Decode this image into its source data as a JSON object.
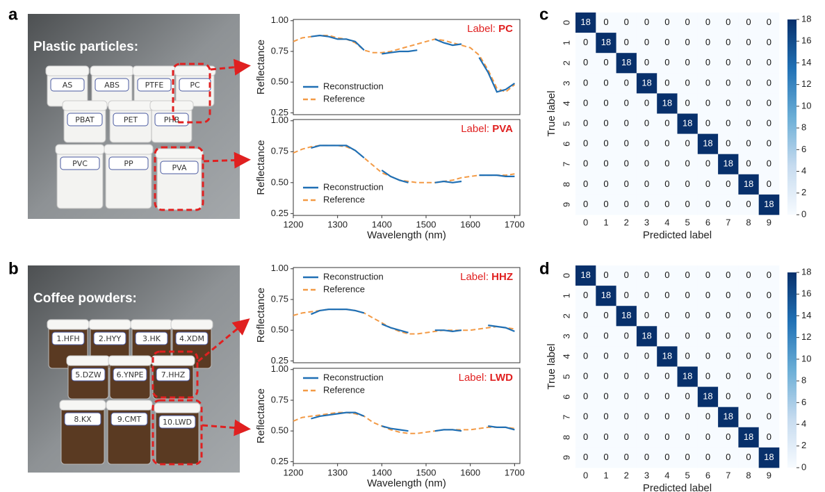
{
  "panels": [
    "a",
    "b",
    "c",
    "d"
  ],
  "photos": [
    {
      "title": "Plastic particles:",
      "jars": [
        "AS",
        "ABS",
        "PTFE",
        "PC",
        "PBAT",
        "PET",
        "PHB",
        "PVC",
        "PP",
        "PVA"
      ]
    },
    {
      "title": "Coffee powders:",
      "jars": [
        "1.HFH",
        "2.HYY",
        "3.HK",
        "4.XDM",
        "5.DZW",
        "6.YNPE",
        "7.HHZ",
        "8.KX",
        "9.CMT",
        "10.LWD"
      ]
    }
  ],
  "chart_data": [
    {
      "type": "line",
      "label_prefix": "Label:",
      "label": "PC",
      "ylabel": "Reflectance",
      "x": [
        1200,
        1220,
        1240,
        1260,
        1280,
        1300,
        1320,
        1340,
        1360,
        1380,
        1400,
        1420,
        1440,
        1460,
        1480,
        1500,
        1520,
        1540,
        1560,
        1580,
        1600,
        1620,
        1640,
        1660,
        1680,
        1700
      ],
      "series": [
        {
          "name": "Reconstruction",
          "color": "#1f6fb4",
          "dashed": false,
          "values": [
            null,
            null,
            0.87,
            0.88,
            0.87,
            0.85,
            0.85,
            0.83,
            0.76,
            null,
            0.73,
            0.74,
            0.75,
            0.75,
            0.76,
            null,
            0.85,
            0.82,
            0.8,
            0.81,
            null,
            0.7,
            0.58,
            0.42,
            0.44,
            0.49
          ]
        },
        {
          "name": "Reference",
          "color": "#f39a45",
          "dashed": true,
          "values": [
            0.83,
            0.86,
            0.87,
            0.88,
            0.88,
            0.86,
            0.85,
            0.82,
            0.76,
            0.74,
            0.74,
            0.75,
            0.77,
            0.79,
            0.81,
            0.83,
            0.85,
            0.84,
            0.82,
            0.8,
            0.78,
            0.72,
            0.6,
            0.45,
            0.42,
            0.48
          ]
        }
      ],
      "xlim": [
        1200,
        1712
      ],
      "ylim": [
        0.235,
        1.01
      ],
      "yticks": [
        {
          "value": 0.25,
          "label": "0.25"
        },
        {
          "value": 0.5,
          "label": "0.50"
        },
        {
          "value": 0.75,
          "label": "0.75"
        },
        {
          "value": 1.0,
          "label": "1.00"
        }
      ],
      "legend": "lower left"
    },
    {
      "type": "line",
      "label_prefix": "Label:",
      "label": "PVA",
      "ylabel": "Reflectance",
      "xlabel": "Wavelength (nm)",
      "x": [
        1200,
        1220,
        1240,
        1260,
        1280,
        1300,
        1320,
        1340,
        1360,
        1380,
        1400,
        1420,
        1440,
        1460,
        1480,
        1500,
        1520,
        1540,
        1560,
        1580,
        1600,
        1620,
        1640,
        1660,
        1680,
        1700
      ],
      "series": [
        {
          "name": "Reconstruction",
          "color": "#1f6fb4",
          "dashed": false,
          "values": [
            null,
            null,
            0.78,
            0.8,
            0.8,
            0.8,
            0.8,
            0.76,
            0.7,
            null,
            0.6,
            0.55,
            0.52,
            0.5,
            null,
            null,
            0.5,
            0.51,
            0.5,
            0.51,
            null,
            0.56,
            0.56,
            0.56,
            0.55,
            0.55
          ]
        },
        {
          "name": "Reference",
          "color": "#f39a45",
          "dashed": true,
          "values": [
            0.74,
            0.77,
            0.79,
            0.8,
            0.8,
            0.8,
            0.79,
            0.76,
            0.7,
            0.64,
            0.58,
            0.55,
            0.52,
            0.51,
            0.5,
            0.5,
            0.5,
            0.51,
            0.52,
            0.54,
            0.55,
            0.56,
            0.56,
            0.56,
            0.56,
            0.57
          ]
        }
      ],
      "xlim": [
        1200,
        1712
      ],
      "ylim": [
        0.235,
        1.01
      ],
      "xticks": [
        1200,
        1300,
        1400,
        1500,
        1600,
        1700
      ],
      "yticks": [
        {
          "value": 0.25,
          "label": "0.25"
        },
        {
          "value": 0.5,
          "label": "0.50"
        },
        {
          "value": 0.75,
          "label": "0.75"
        },
        {
          "value": 1.0,
          "label": "1.00"
        }
      ],
      "legend": "lower left"
    },
    {
      "type": "line",
      "label_prefix": "Label:",
      "label": "HHZ",
      "ylabel": "Reflectance",
      "x": [
        1200,
        1220,
        1240,
        1260,
        1280,
        1300,
        1320,
        1340,
        1360,
        1380,
        1400,
        1420,
        1440,
        1460,
        1480,
        1500,
        1520,
        1540,
        1560,
        1580,
        1600,
        1620,
        1640,
        1660,
        1680,
        1700
      ],
      "series": [
        {
          "name": "Reconstruction",
          "color": "#1f6fb4",
          "dashed": false,
          "values": [
            null,
            null,
            0.63,
            0.66,
            0.67,
            0.67,
            0.67,
            0.66,
            0.64,
            null,
            0.55,
            0.52,
            0.5,
            0.48,
            null,
            null,
            0.5,
            0.5,
            0.49,
            0.5,
            null,
            null,
            0.54,
            0.53,
            0.52,
            0.49
          ]
        },
        {
          "name": "Reference",
          "color": "#f39a45",
          "dashed": true,
          "values": [
            0.62,
            0.64,
            0.65,
            0.66,
            0.67,
            0.67,
            0.67,
            0.66,
            0.64,
            0.6,
            0.56,
            0.52,
            0.49,
            0.47,
            0.47,
            0.48,
            0.49,
            0.5,
            0.5,
            0.5,
            0.5,
            0.51,
            0.52,
            0.53,
            0.52,
            0.51
          ]
        }
      ],
      "xlim": [
        1200,
        1712
      ],
      "ylim": [
        0.235,
        1.01
      ],
      "yticks": [
        {
          "value": 0.25,
          "label": "0.25"
        },
        {
          "value": 0.5,
          "label": "0.50"
        },
        {
          "value": 0.75,
          "label": "0.75"
        },
        {
          "value": 1.0,
          "label": "1.00"
        }
      ],
      "legend": "upper left"
    },
    {
      "type": "line",
      "label_prefix": "Label:",
      "label": "LWD",
      "ylabel": "Reflectance",
      "xlabel": "Wavelength (nm)",
      "x": [
        1200,
        1220,
        1240,
        1260,
        1280,
        1300,
        1320,
        1340,
        1360,
        1380,
        1400,
        1420,
        1440,
        1460,
        1480,
        1500,
        1520,
        1540,
        1560,
        1580,
        1600,
        1620,
        1640,
        1660,
        1680,
        1700
      ],
      "series": [
        {
          "name": "Reconstruction",
          "color": "#1f6fb4",
          "dashed": false,
          "values": [
            null,
            null,
            0.6,
            0.62,
            0.63,
            0.64,
            0.65,
            0.65,
            0.62,
            null,
            0.54,
            0.52,
            0.51,
            0.5,
            null,
            null,
            0.5,
            0.51,
            0.51,
            0.5,
            null,
            null,
            0.54,
            0.53,
            0.53,
            0.51
          ]
        },
        {
          "name": "Reference",
          "color": "#f39a45",
          "dashed": true,
          "values": [
            0.58,
            0.61,
            0.62,
            0.63,
            0.64,
            0.65,
            0.65,
            0.64,
            0.62,
            0.57,
            0.54,
            0.51,
            0.49,
            0.48,
            0.48,
            0.49,
            0.5,
            0.51,
            0.51,
            0.51,
            0.51,
            0.52,
            0.53,
            0.53,
            0.53,
            0.52
          ]
        }
      ],
      "xlim": [
        1200,
        1712
      ],
      "ylim": [
        0.235,
        1.01
      ],
      "xticks": [
        1200,
        1300,
        1400,
        1500,
        1600,
        1700
      ],
      "yticks": [
        {
          "value": 0.25,
          "label": "0.25"
        },
        {
          "value": 0.5,
          "label": "0.50"
        },
        {
          "value": 0.75,
          "label": "0.75"
        },
        {
          "value": 1.0,
          "label": "1.00"
        }
      ],
      "legend": "upper left"
    },
    {
      "type": "heatmap",
      "xlabel": "Predicted label",
      "ylabel": "True label",
      "categories": [
        "0",
        "1",
        "2",
        "3",
        "4",
        "5",
        "6",
        "7",
        "8",
        "9"
      ],
      "values": [
        [
          18,
          0,
          0,
          0,
          0,
          0,
          0,
          0,
          0,
          0
        ],
        [
          0,
          18,
          0,
          0,
          0,
          0,
          0,
          0,
          0,
          0
        ],
        [
          0,
          0,
          18,
          0,
          0,
          0,
          0,
          0,
          0,
          0
        ],
        [
          0,
          0,
          0,
          18,
          0,
          0,
          0,
          0,
          0,
          0
        ],
        [
          0,
          0,
          0,
          0,
          18,
          0,
          0,
          0,
          0,
          0
        ],
        [
          0,
          0,
          0,
          0,
          0,
          18,
          0,
          0,
          0,
          0
        ],
        [
          0,
          0,
          0,
          0,
          0,
          0,
          18,
          0,
          0,
          0
        ],
        [
          0,
          0,
          0,
          0,
          0,
          0,
          0,
          18,
          0,
          0
        ],
        [
          0,
          0,
          0,
          0,
          0,
          0,
          0,
          0,
          18,
          0
        ],
        [
          0,
          0,
          0,
          0,
          0,
          0,
          0,
          0,
          0,
          18
        ]
      ],
      "clim": [
        0,
        18
      ],
      "cticks": [
        0,
        2,
        4,
        6,
        8,
        10,
        12,
        14,
        16,
        18
      ],
      "colors": [
        "#f7fbff",
        "#c6dbef",
        "#6baed6",
        "#2171b5",
        "#08306b"
      ]
    },
    {
      "type": "heatmap",
      "xlabel": "Predicted label",
      "ylabel": "True label",
      "categories": [
        "0",
        "1",
        "2",
        "3",
        "4",
        "5",
        "6",
        "7",
        "8",
        "9"
      ],
      "values": [
        [
          18,
          0,
          0,
          0,
          0,
          0,
          0,
          0,
          0,
          0
        ],
        [
          0,
          18,
          0,
          0,
          0,
          0,
          0,
          0,
          0,
          0
        ],
        [
          0,
          0,
          18,
          0,
          0,
          0,
          0,
          0,
          0,
          0
        ],
        [
          0,
          0,
          0,
          18,
          0,
          0,
          0,
          0,
          0,
          0
        ],
        [
          0,
          0,
          0,
          0,
          18,
          0,
          0,
          0,
          0,
          0
        ],
        [
          0,
          0,
          0,
          0,
          0,
          18,
          0,
          0,
          0,
          0
        ],
        [
          0,
          0,
          0,
          0,
          0,
          0,
          18,
          0,
          0,
          0
        ],
        [
          0,
          0,
          0,
          0,
          0,
          0,
          0,
          18,
          0,
          0
        ],
        [
          0,
          0,
          0,
          0,
          0,
          0,
          0,
          0,
          18,
          0
        ],
        [
          0,
          0,
          0,
          0,
          0,
          0,
          0,
          0,
          0,
          18
        ]
      ],
      "clim": [
        0,
        18
      ],
      "cticks": [
        0,
        2,
        4,
        6,
        8,
        10,
        12,
        14,
        16,
        18
      ],
      "colors": [
        "#f7fbff",
        "#c6dbef",
        "#6baed6",
        "#2171b5",
        "#08306b"
      ]
    }
  ]
}
